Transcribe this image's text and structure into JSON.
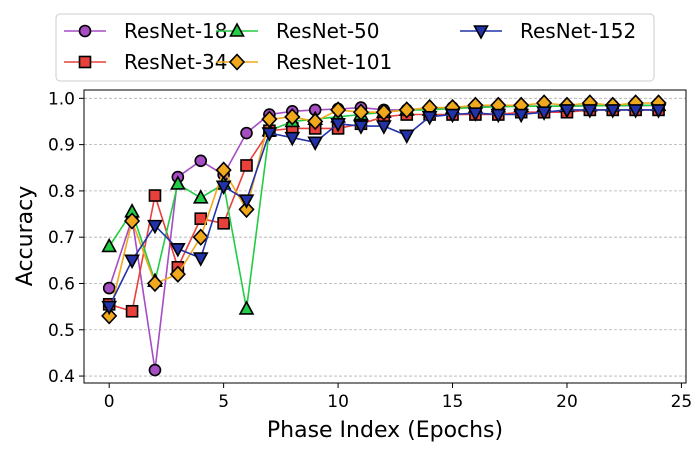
{
  "chart_data": {
    "type": "line",
    "title": "",
    "xlabel": "Phase Index (Epochs)",
    "ylabel": "Accuracy",
    "xlim": [
      -1.1,
      25.2
    ],
    "ylim": [
      0.385,
      1.018
    ],
    "xticks": [
      0,
      5,
      10,
      15,
      20,
      25
    ],
    "yticks": [
      0.4,
      0.5,
      0.6,
      0.7,
      0.8,
      0.9,
      1.0
    ],
    "ytick_labels": [
      "0.4",
      "0.5",
      "0.6",
      "0.7",
      "0.8",
      "0.9",
      "1.0"
    ],
    "grid": "horizontal dashed",
    "legend": "top, outside, 4 columns",
    "x": [
      0,
      1,
      2,
      3,
      4,
      5,
      6,
      7,
      8,
      9,
      10,
      11,
      12,
      13,
      14,
      15,
      16,
      17,
      18,
      19,
      20,
      21,
      22,
      23,
      24
    ],
    "series": [
      {
        "name": "ResNet-18",
        "color": "#a64dc4",
        "marker": "circle",
        "values": [
          0.59,
          0.74,
          0.413,
          0.83,
          0.865,
          0.835,
          0.925,
          0.965,
          0.972,
          0.975,
          0.977,
          0.98,
          0.975,
          0.975,
          0.978,
          0.98,
          0.982,
          0.982,
          0.983,
          0.983,
          0.983,
          0.984,
          0.984,
          0.984,
          0.985
        ]
      },
      {
        "name": "ResNet-34",
        "color": "#e8413c",
        "marker": "square",
        "values": [
          0.555,
          0.54,
          0.79,
          0.635,
          0.74,
          0.73,
          0.855,
          0.93,
          0.935,
          0.935,
          0.935,
          0.945,
          0.96,
          0.965,
          0.965,
          0.965,
          0.965,
          0.965,
          0.97,
          0.97,
          0.97,
          0.975,
          0.975,
          0.975,
          0.975
        ]
      },
      {
        "name": "ResNet-50",
        "color": "#22cc44",
        "marker": "triangle-up",
        "values": [
          0.68,
          0.755,
          0.605,
          0.815,
          0.785,
          0.815,
          0.545,
          0.93,
          0.95,
          0.955,
          0.96,
          0.965,
          0.97,
          0.975,
          0.975,
          0.978,
          0.98,
          0.982,
          0.983,
          0.983,
          0.983,
          0.984,
          0.984,
          0.985,
          0.985
        ]
      },
      {
        "name": "ResNet-101",
        "color": "#f0a81c",
        "marker": "diamond",
        "values": [
          0.53,
          0.735,
          0.6,
          0.62,
          0.7,
          0.845,
          0.76,
          0.955,
          0.96,
          0.95,
          0.975,
          0.97,
          0.97,
          0.975,
          0.98,
          0.98,
          0.985,
          0.985,
          0.985,
          0.99,
          0.985,
          0.99,
          0.985,
          0.99,
          0.99
        ]
      },
      {
        "name": "ResNet-152",
        "color": "#2233aa",
        "marker": "triangle-down",
        "values": [
          0.55,
          0.65,
          0.725,
          0.675,
          0.655,
          0.81,
          0.78,
          0.925,
          0.915,
          0.905,
          0.945,
          0.94,
          0.94,
          0.92,
          0.96,
          0.965,
          0.968,
          0.965,
          0.965,
          0.97,
          0.975,
          0.975,
          0.975,
          0.975,
          0.975
        ]
      }
    ]
  }
}
